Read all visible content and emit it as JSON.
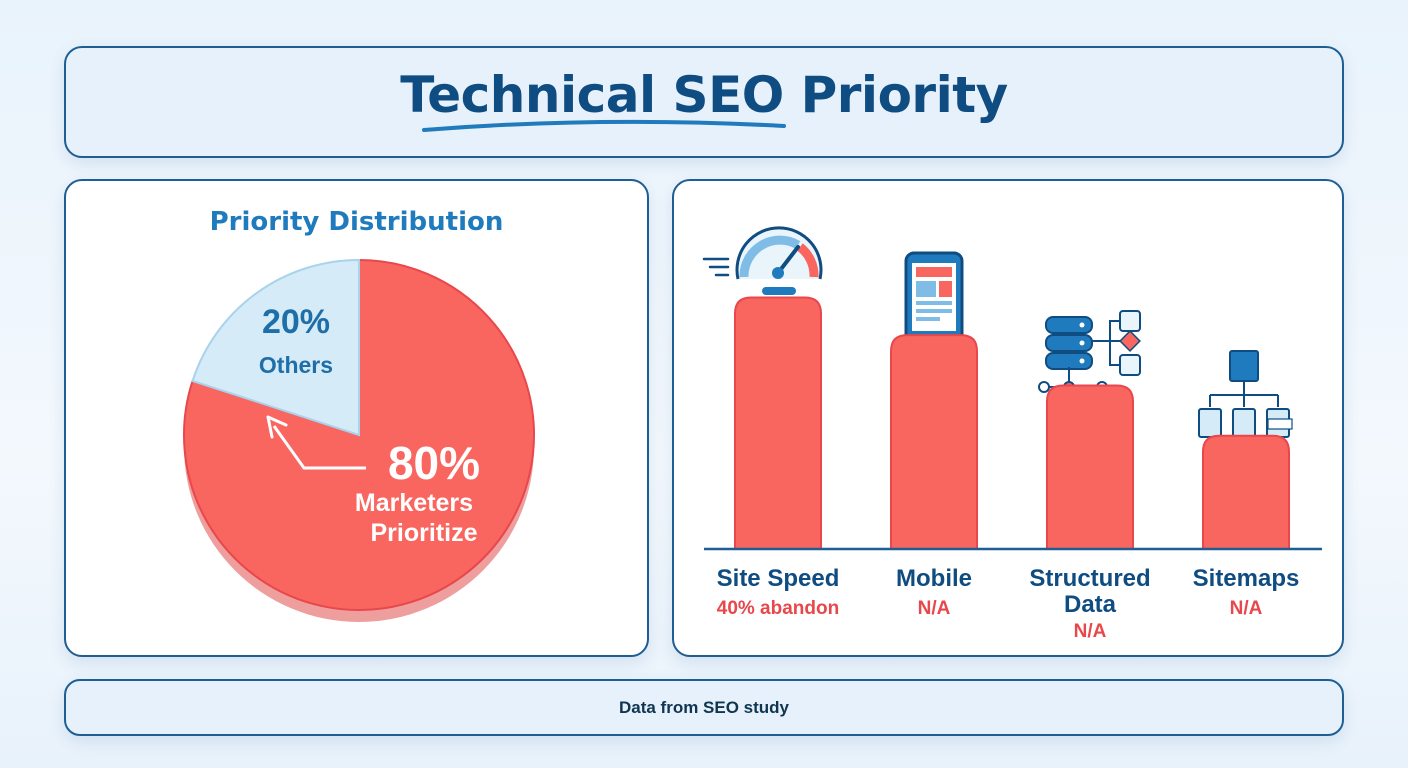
{
  "header": {
    "title": "Technical SEO Priority"
  },
  "colors": {
    "primary": "#0f4c81",
    "accent": "#1f7bbd",
    "highlight": "#f96660",
    "highlight_text": "#e8474b",
    "light": "#d5ebf7"
  },
  "chart_data": [
    {
      "type": "pie",
      "title": "Priority Distribution",
      "slices": [
        {
          "value": 80,
          "percent_label": "80%",
          "label_line1": "Marketers",
          "label_line2": "Prioritize",
          "color": "#f96660"
        },
        {
          "value": 20,
          "percent_label": "20%",
          "label_line1": "Others",
          "label_line2": "",
          "color": "#d5ebf7"
        }
      ]
    },
    {
      "type": "bar",
      "categories": [
        "Site Speed",
        "Mobile",
        "Structured Data",
        "Sitemaps"
      ],
      "values": [
        4,
        3.4,
        2.6,
        1.8
      ],
      "notes": [
        "40% abandon",
        "N/A",
        "N/A",
        "N/A"
      ],
      "icons": [
        "speedometer-icon",
        "smartphone-icon",
        "database-network-icon",
        "sitemap-icon"
      ],
      "ylim": [
        0,
        4.5
      ],
      "grid": false,
      "axis_labels_visible": false
    }
  ],
  "footer": {
    "text": "Data from SEO study"
  }
}
